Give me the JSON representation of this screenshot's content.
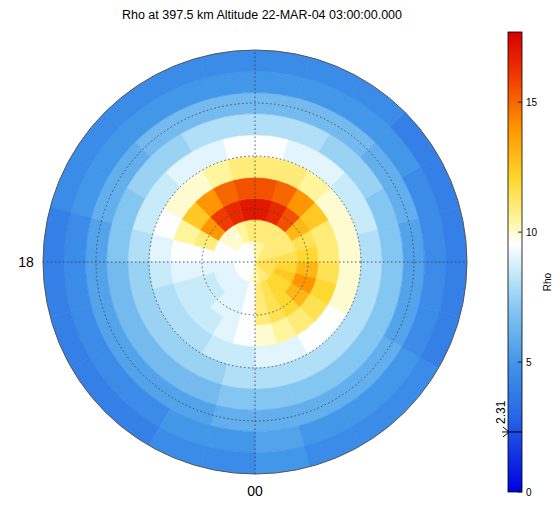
{
  "chart_data": {
    "type": "polar_heatmap",
    "title": "Rho at 397.5 km Altitude 22-MAR-04 03:00:00.000",
    "lat_edges": [
      90,
      86,
      82,
      78,
      74,
      70,
      66,
      62,
      58,
      54,
      50
    ],
    "lt_edges": [
      0,
      1,
      2,
      3,
      4,
      5,
      6,
      7,
      8,
      9,
      10,
      11,
      12,
      13,
      14,
      15,
      16,
      17,
      18,
      19,
      20,
      21,
      22,
      23,
      24
    ],
    "cells": [
      [
        10.5,
        11,
        11,
        11.5,
        11.5,
        11.5,
        11.5,
        11,
        11,
        11,
        10.5,
        10.5,
        10,
        9.5,
        9.5,
        9.5,
        9.5,
        9.5,
        9.5,
        9.5,
        9.5,
        9.5,
        9.5,
        10
      ],
      [
        11,
        11.5,
        12,
        12,
        12.5,
        12,
        11.5,
        11,
        11,
        11,
        11,
        11,
        11,
        10.5,
        10,
        10,
        9.5,
        9.5,
        9,
        9,
        9,
        9,
        9,
        9.5
      ],
      [
        11,
        11.5,
        12,
        13,
        14,
        13,
        12,
        11.5,
        13,
        15.5,
        16.5,
        17,
        17,
        16.5,
        16,
        14,
        11,
        9.5,
        9,
        8.5,
        8.5,
        9,
        9,
        9.5
      ],
      [
        10,
        10.5,
        11,
        11.5,
        12,
        11.5,
        11,
        11,
        12.5,
        14,
        15,
        15.5,
        15.5,
        15,
        14,
        12.5,
        10.5,
        9.5,
        9,
        8.5,
        8.5,
        8.5,
        9,
        9.5
      ],
      [
        9,
        9,
        9.5,
        9.5,
        10,
        10,
        10,
        10,
        10,
        10.5,
        11,
        11,
        11,
        10.5,
        10,
        10,
        9.5,
        9,
        8.5,
        8,
        8,
        8,
        8.5,
        8.5
      ],
      [
        8,
        8,
        8,
        8,
        8,
        8,
        8,
        8.5,
        8.5,
        9,
        9,
        9.5,
        9.5,
        9,
        9,
        8.5,
        8.5,
        8,
        7.5,
        7.5,
        7.5,
        7.5,
        7.5,
        8
      ],
      [
        7,
        7,
        7,
        7,
        7,
        7,
        7,
        7,
        7.5,
        7.5,
        8,
        8,
        8,
        8,
        7.5,
        7.5,
        7,
        7,
        6.5,
        6.5,
        6.5,
        6.5,
        6.5,
        7
      ],
      [
        6,
        6,
        6,
        6,
        5.5,
        5.5,
        5.5,
        6,
        6,
        6.5,
        6.5,
        6.5,
        6.5,
        6.5,
        6.5,
        6,
        6,
        5.5,
        5.5,
        5.5,
        5.5,
        5.5,
        5.5,
        6
      ],
      [
        5.5,
        5,
        5,
        5,
        4.5,
        4.5,
        4.5,
        4.5,
        5,
        5,
        5,
        5,
        5,
        5,
        5,
        5,
        5,
        4.5,
        4.5,
        4.5,
        4.5,
        4.5,
        5,
        5
      ],
      [
        5,
        4.5,
        4.5,
        4.5,
        4,
        4,
        4,
        4,
        4,
        4.5,
        4.5,
        4.5,
        4.5,
        4.5,
        4.5,
        4.5,
        4.5,
        4,
        4,
        4,
        4,
        4,
        4.5,
        4.5
      ]
    ],
    "rlim": [
      90,
      50
    ],
    "rticks": [
      80,
      70,
      60
    ],
    "angular_ticks": [
      {
        "value": 18,
        "label": "18"
      },
      {
        "value": 0,
        "label": "00"
      }
    ],
    "colorbar": {
      "label": "Rho",
      "range": [
        0,
        17.7
      ],
      "ticks": [
        0,
        5,
        10,
        15
      ],
      "marker": 2.31
    }
  }
}
